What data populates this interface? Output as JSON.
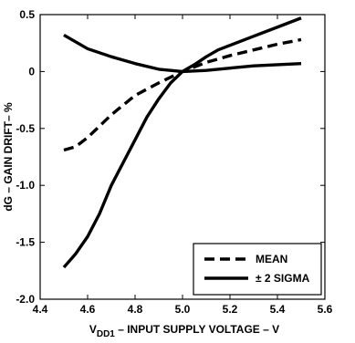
{
  "chart_data": {
    "type": "line",
    "title": "",
    "xlabel_prefix": "V",
    "xlabel_subscript": "DD1",
    "xlabel_rest": " – INPUT SUPPLY VOLTAGE – V",
    "ylabel": "dG – GAIN DRIFT– %",
    "xlim": [
      4.4,
      5.6
    ],
    "ylim": [
      -2.0,
      0.5
    ],
    "xticks": [
      4.4,
      4.6,
      4.8,
      5.0,
      5.2,
      5.4,
      5.6
    ],
    "xtick_labels": [
      "4.4",
      "4.6",
      "4.8",
      "5.0",
      "5.2",
      "5.4",
      "5.6"
    ],
    "yticks": [
      0.5,
      0,
      -0.5,
      -1.0,
      -1.5,
      -2.0
    ],
    "ytick_labels": [
      "0.5",
      "0",
      "-0.5",
      "-1.0",
      "-1.5",
      "-2.0"
    ],
    "grid": false,
    "legend_position": "bottom-right",
    "series": [
      {
        "name": "MEAN",
        "style": "dashed",
        "points": [
          [
            4.5,
            -0.69
          ],
          [
            4.55,
            -0.66
          ],
          [
            4.6,
            -0.58
          ],
          [
            4.7,
            -0.38
          ],
          [
            4.8,
            -0.21
          ],
          [
            4.9,
            -0.1
          ],
          [
            5.0,
            0.0
          ],
          [
            5.1,
            0.08
          ],
          [
            5.2,
            0.14
          ],
          [
            5.3,
            0.19
          ],
          [
            5.4,
            0.24
          ],
          [
            5.5,
            0.28
          ]
        ]
      },
      {
        "name": "± 2 SIGMA",
        "style": "solid",
        "points": [
          [
            4.5,
            -1.72
          ],
          [
            4.55,
            -1.6
          ],
          [
            4.6,
            -1.45
          ],
          [
            4.65,
            -1.25
          ],
          [
            4.7,
            -1.0
          ],
          [
            4.75,
            -0.8
          ],
          [
            4.8,
            -0.6
          ],
          [
            4.85,
            -0.4
          ],
          [
            4.9,
            -0.24
          ],
          [
            4.95,
            -0.1
          ],
          [
            5.0,
            0.0
          ],
          [
            5.05,
            0.06
          ],
          [
            5.1,
            0.13
          ],
          [
            5.15,
            0.19
          ],
          [
            5.2,
            0.23
          ],
          [
            5.3,
            0.31
          ],
          [
            5.4,
            0.39
          ],
          [
            5.5,
            0.47
          ]
        ]
      },
      {
        "name": "",
        "style": "solid",
        "points": [
          [
            4.5,
            0.32
          ],
          [
            4.55,
            0.26
          ],
          [
            4.6,
            0.2
          ],
          [
            4.7,
            0.13
          ],
          [
            4.8,
            0.07
          ],
          [
            4.9,
            0.02
          ],
          [
            5.0,
            0.0
          ],
          [
            5.1,
            0.01
          ],
          [
            5.2,
            0.03
          ],
          [
            5.3,
            0.05
          ],
          [
            5.4,
            0.06
          ],
          [
            5.5,
            0.07
          ]
        ]
      }
    ]
  }
}
